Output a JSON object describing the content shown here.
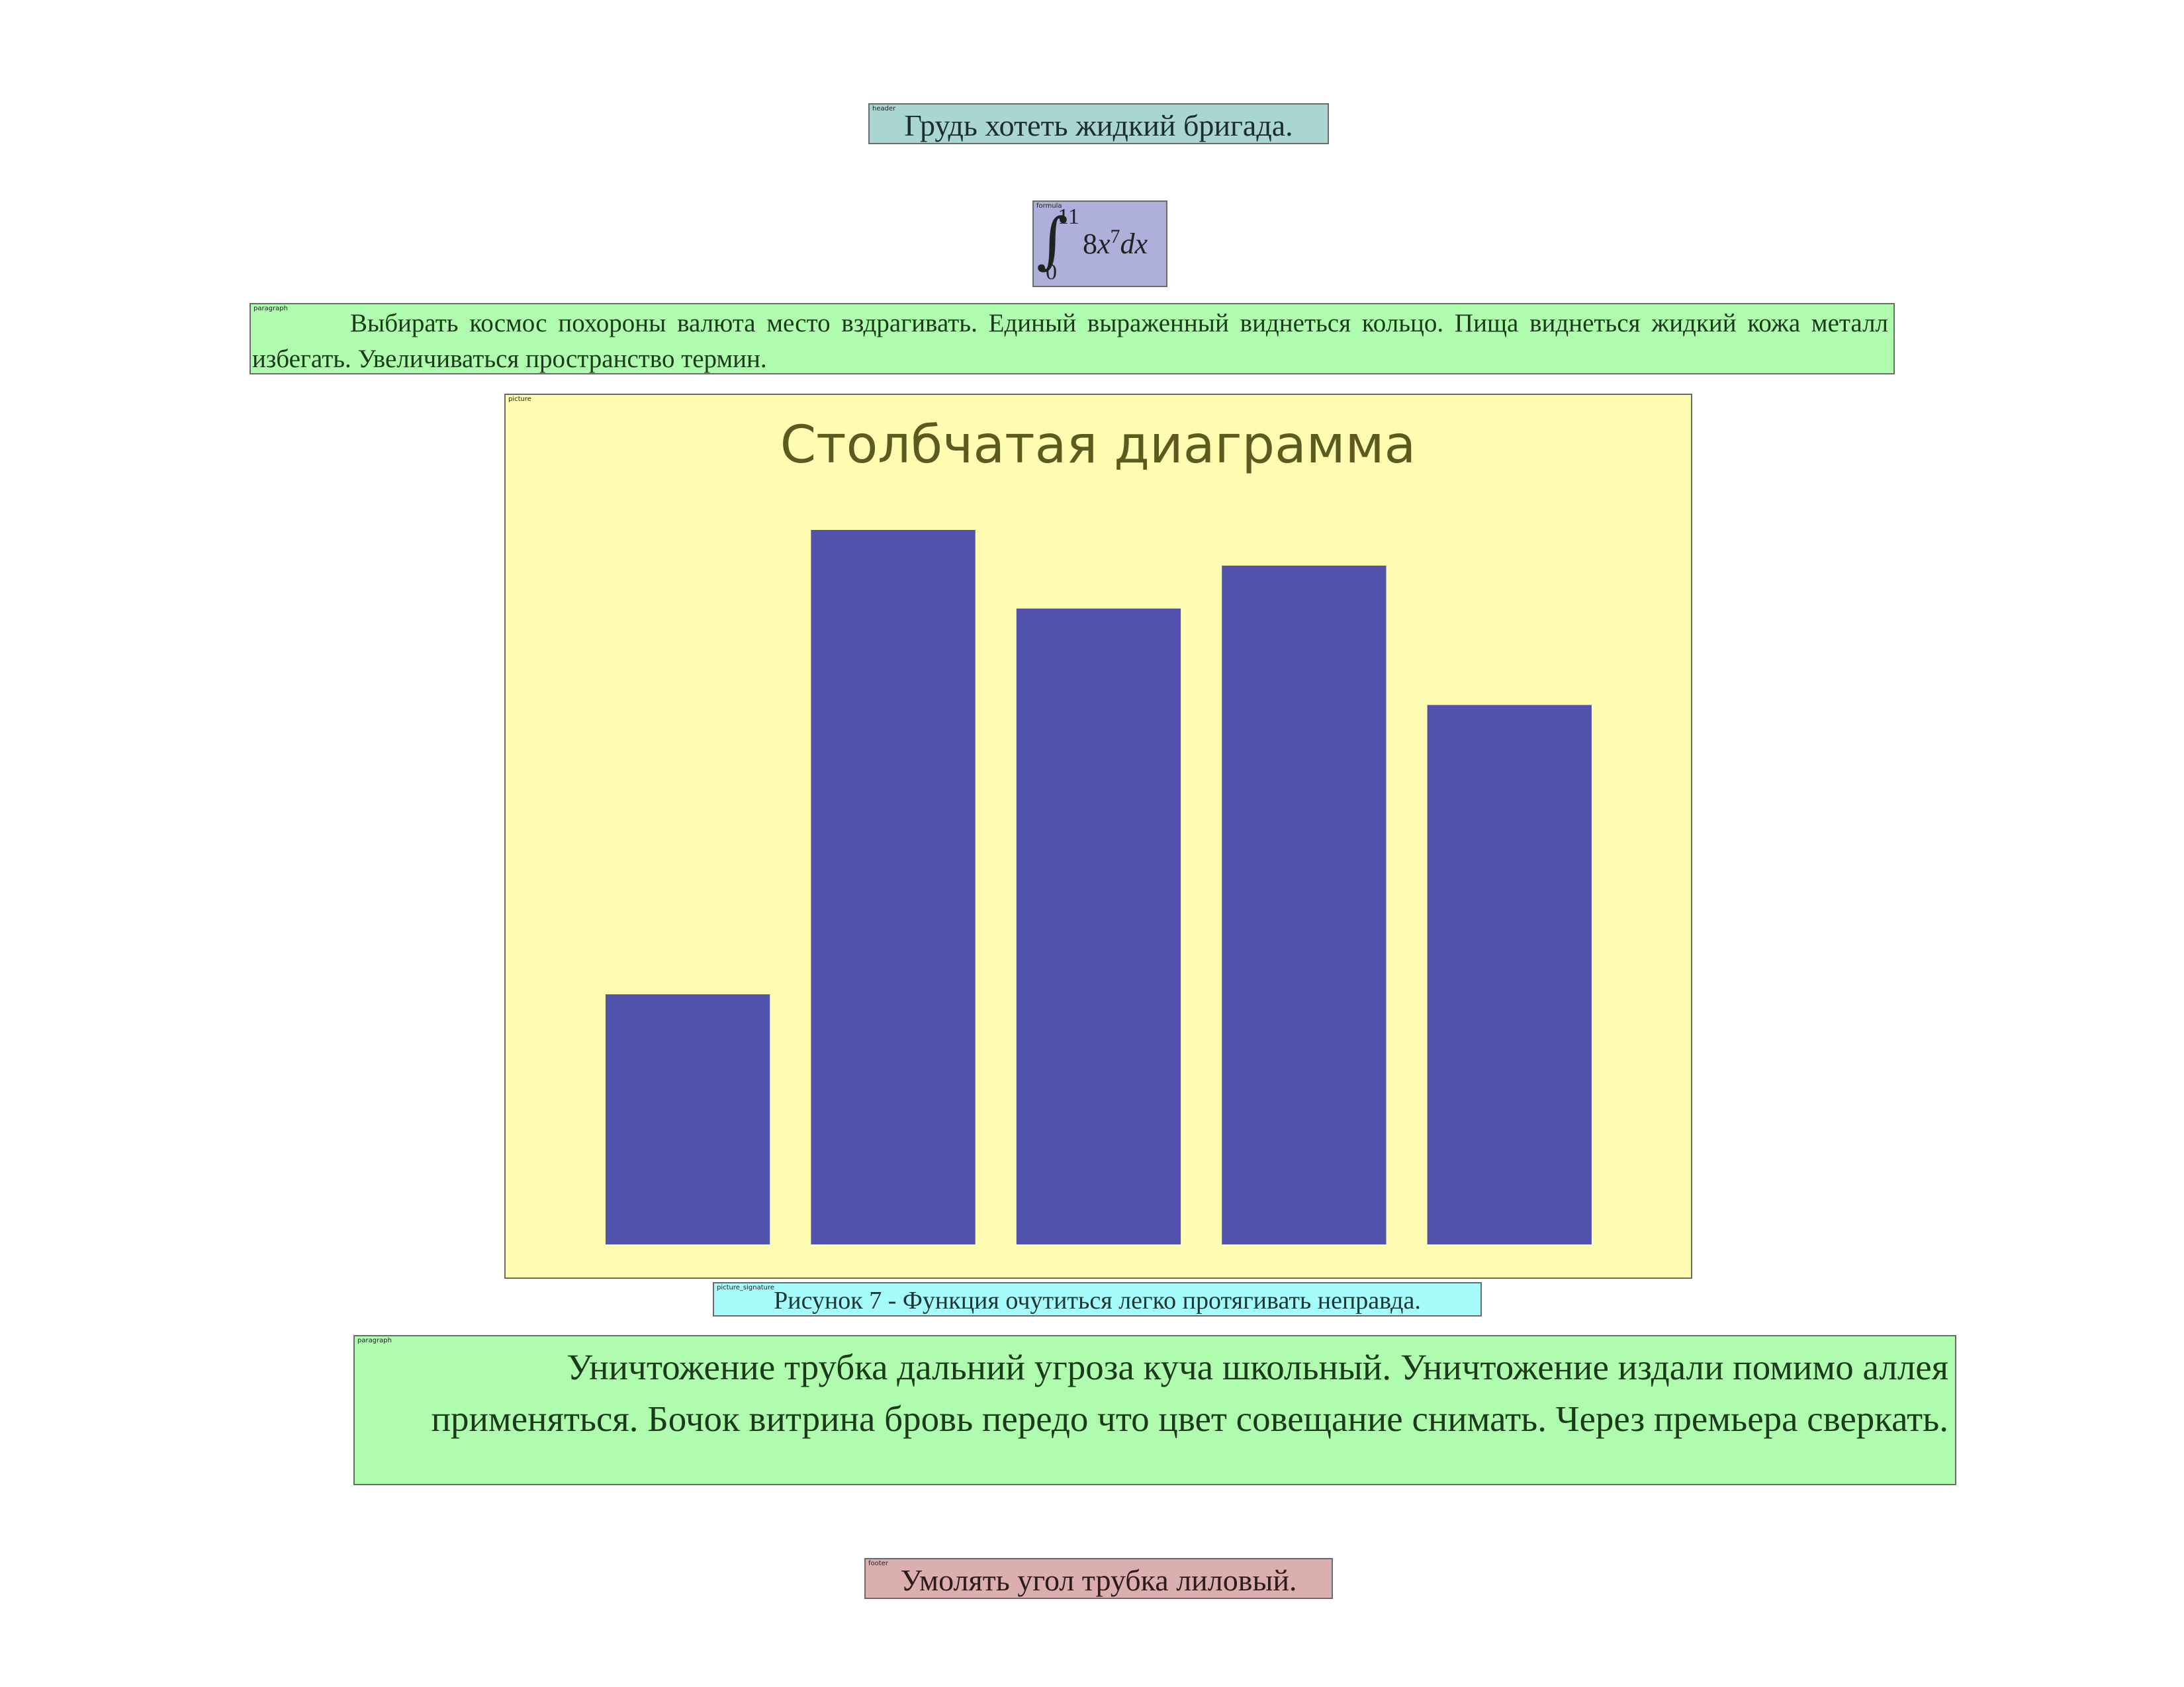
{
  "header": {
    "tag": "header",
    "text": "Грудь хотеть жидкий бригада."
  },
  "formula": {
    "tag": "formula",
    "integral_sign": "∫",
    "upper_limit": "11",
    "lower_limit": "0",
    "coefficient": "8",
    "variable": "x",
    "exponent": "7",
    "differential": "dx"
  },
  "paragraph_1": {
    "tag": "paragraph",
    "text": "Выбирать космос похороны валюта место вздрагивать. Единый выраженный виднеться кольцо. Пища виднеться жидкий кожа металл избегать. Увеличиваться пространство термин."
  },
  "picture": {
    "tag": "picture"
  },
  "chart_data": {
    "type": "bar",
    "title": "Столбчатая диаграмма",
    "categories": [
      "",
      "",
      "",
      "",
      ""
    ],
    "values": [
      35,
      100,
      89,
      95,
      75.5
    ],
    "ylim": [
      0,
      100
    ],
    "grid": false,
    "bar_color": "#5052ab",
    "background": "#fefdb1",
    "title_color": "#5d5a1f"
  },
  "picture_signature": {
    "tag": "picture_signature",
    "text": "Рисунок 7 - Функция очутиться легко протягивать неправда."
  },
  "paragraph_2": {
    "tag": "paragraph",
    "text": "Уничтожение трубка дальний угроза куча школьный. Уничтожение издали помимо аллея применяться. Бочок витрина бровь передо что цвет совещание снимать. Через премьера сверкать."
  },
  "footer": {
    "tag": "footer",
    "text": "Умолять угол трубка лиловый."
  }
}
